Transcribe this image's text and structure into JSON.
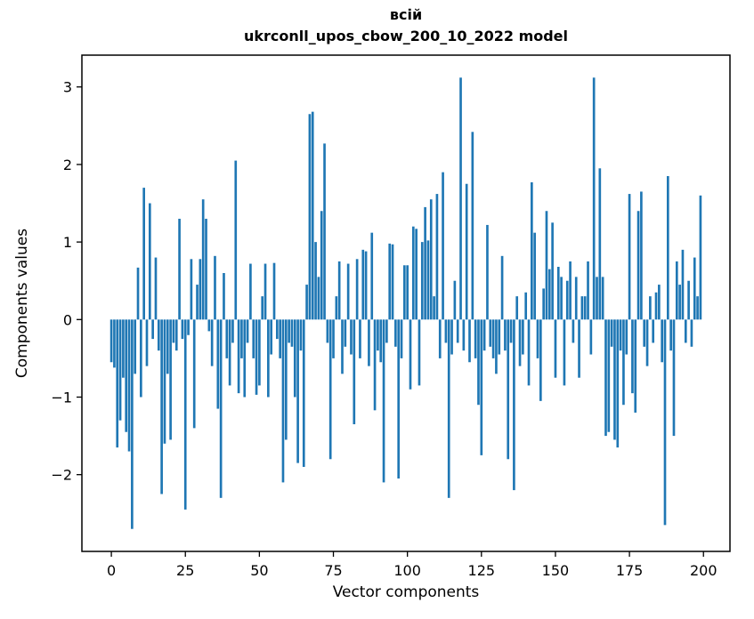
{
  "chart_data": {
    "type": "bar",
    "title": "всій",
    "subtitle": "ukrconll_upos_cbow_200_10_2022 model",
    "xlabel": "Vector components",
    "ylabel": "Components values",
    "xlim": [
      -9.95,
      208.95
    ],
    "ylim": [
      -2.99,
      3.41
    ],
    "xticks": [
      0,
      25,
      50,
      75,
      100,
      125,
      150,
      175,
      200
    ],
    "yticks": [
      -2,
      -1,
      0,
      1,
      2,
      3
    ],
    "bar_color": "#1f77b4",
    "axis_color": "#000000",
    "n_components": 200,
    "values": [
      -0.55,
      -0.62,
      -1.65,
      -1.3,
      -0.75,
      -1.45,
      -1.7,
      -2.7,
      -0.7,
      0.67,
      -1.0,
      1.7,
      -0.6,
      1.5,
      -0.25,
      0.8,
      -0.4,
      -2.25,
      -1.6,
      -0.7,
      -1.55,
      -0.3,
      -0.4,
      1.3,
      -0.25,
      -2.45,
      -0.2,
      0.78,
      -1.4,
      0.45,
      0.78,
      1.55,
      1.3,
      -0.15,
      -0.6,
      0.82,
      -1.15,
      -2.3,
      0.6,
      -0.5,
      -0.85,
      -0.3,
      2.05,
      -0.95,
      -0.5,
      -1.0,
      -0.3,
      0.72,
      -0.5,
      -0.97,
      -0.85,
      0.3,
      0.72,
      -1.0,
      -0.45,
      0.73,
      -0.25,
      -0.5,
      -2.1,
      -1.55,
      -0.3,
      -0.35,
      -1.0,
      -1.85,
      -0.4,
      -1.9,
      0.45,
      2.65,
      2.68,
      1.0,
      0.55,
      1.4,
      2.27,
      -0.3,
      -1.8,
      -0.5,
      0.3,
      0.75,
      -0.7,
      -0.35,
      0.72,
      -0.45,
      -1.35,
      0.78,
      -0.5,
      0.9,
      0.88,
      -0.6,
      1.12,
      -1.17,
      -0.4,
      -0.55,
      -2.1,
      -0.3,
      0.98,
      0.97,
      -0.35,
      -2.05,
      -0.5,
      0.7,
      0.7,
      -0.9,
      1.2,
      1.17,
      -0.85,
      1.0,
      1.45,
      1.02,
      1.55,
      0.3,
      1.62,
      -0.5,
      1.9,
      -0.3,
      -2.3,
      -0.45,
      0.5,
      -0.3,
      3.12,
      -0.4,
      1.75,
      -0.55,
      2.42,
      -0.5,
      -1.1,
      -1.75,
      -0.4,
      1.22,
      -0.35,
      -0.5,
      -0.7,
      -0.45,
      0.82,
      -0.4,
      -1.8,
      -0.3,
      -2.2,
      0.3,
      -0.6,
      -0.45,
      0.35,
      -0.85,
      1.77,
      1.12,
      -0.5,
      -1.05,
      0.4,
      1.4,
      0.65,
      1.25,
      -0.75,
      0.68,
      0.55,
      -0.85,
      0.5,
      0.75,
      -0.3,
      0.55,
      -0.75,
      0.3,
      0.3,
      0.75,
      -0.45,
      3.12,
      0.55,
      1.95,
      0.55,
      -1.5,
      -1.45,
      -0.35,
      -1.55,
      -1.65,
      -0.4,
      -1.1,
      -0.45,
      1.62,
      -0.95,
      -1.2,
      1.4,
      1.65,
      -0.35,
      -0.6,
      0.3,
      -0.3,
      0.35,
      0.45,
      -0.55,
      -2.65,
      1.85,
      -0.4,
      -1.5,
      0.75,
      0.45,
      0.9,
      -0.3,
      0.5,
      -0.35,
      0.8,
      0.3,
      1.6
    ]
  }
}
